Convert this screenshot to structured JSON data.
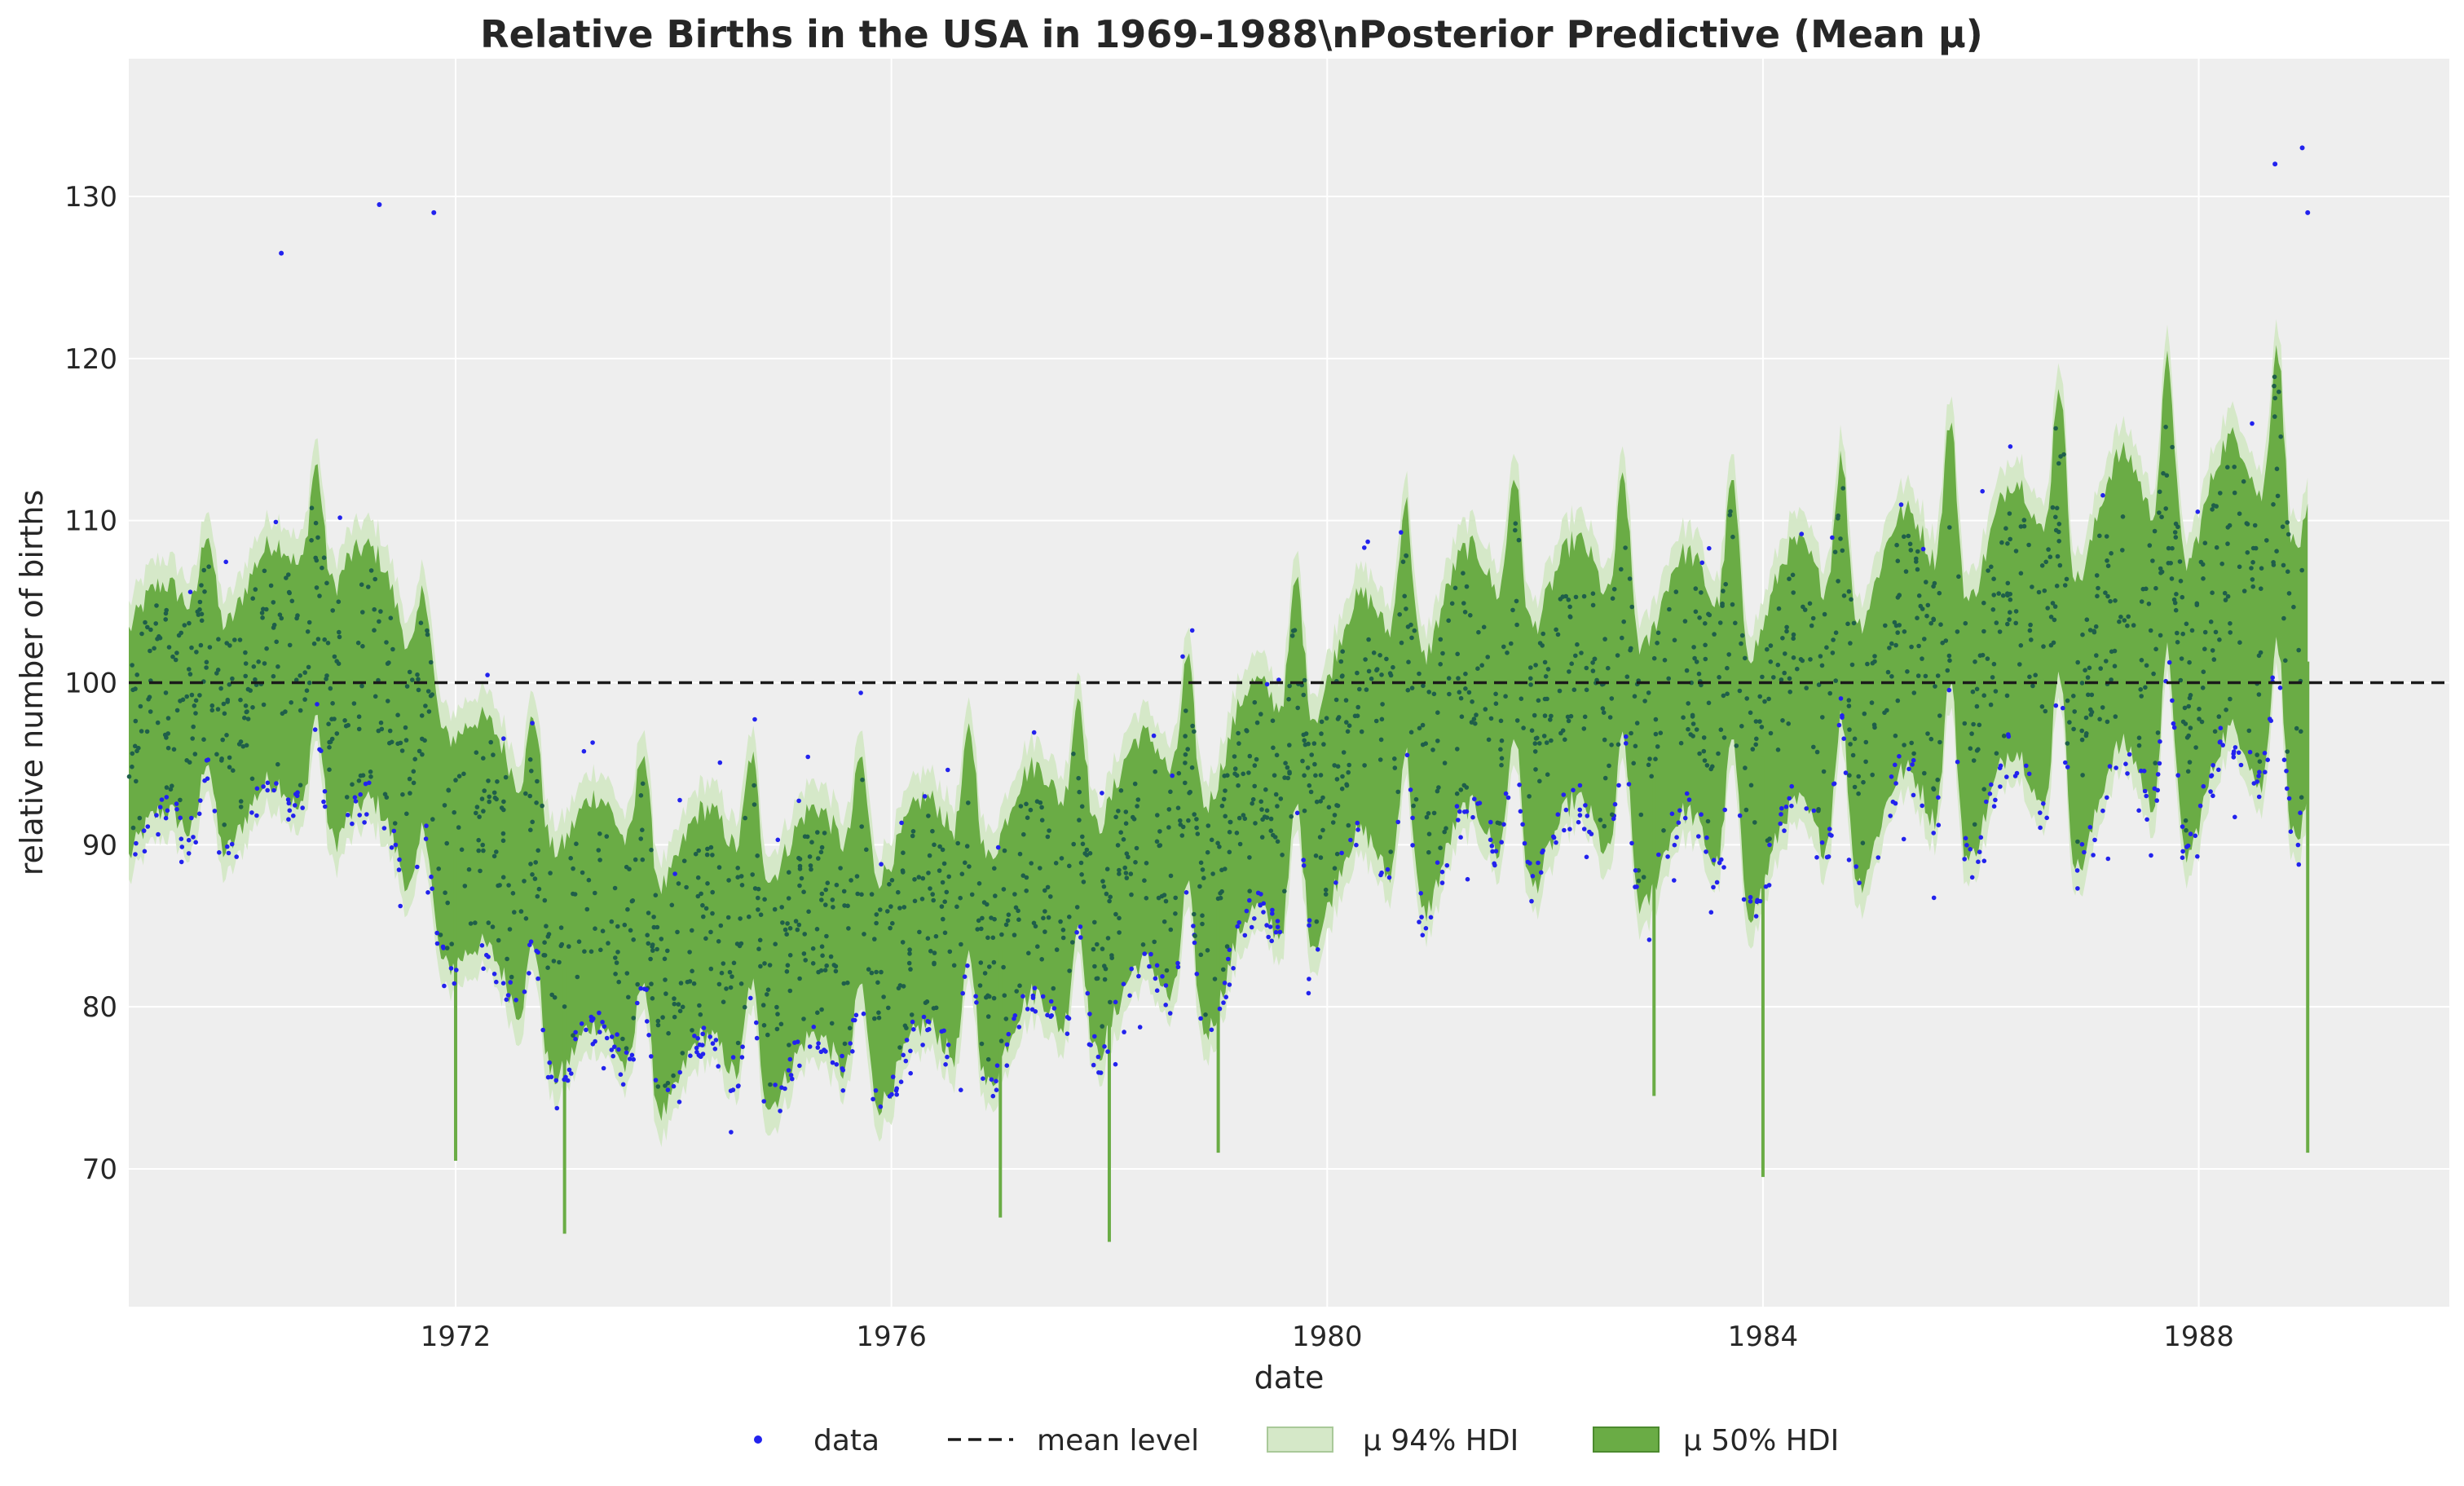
{
  "chart_data": {
    "type": "line",
    "title": "Relative Births in the USA in 1969-1988\\nPosterior Predictive (Mean μ)",
    "xlabel": "date",
    "ylabel": "relative number of births",
    "xlim": [
      1969.0,
      1990.3
    ],
    "ylim": [
      61.5,
      138.5
    ],
    "x_ticks": [
      1972,
      1976,
      1980,
      1984,
      1988
    ],
    "x_tick_labels": [
      "1972",
      "1976",
      "1980",
      "1984",
      "1988"
    ],
    "y_ticks": [
      70,
      80,
      90,
      100,
      110,
      120,
      130
    ],
    "y_tick_labels": [
      "70",
      "80",
      "90",
      "100",
      "110",
      "120",
      "130"
    ],
    "grid": true,
    "legend_position": "bottom-center",
    "reference_line": {
      "name": "mean level",
      "y": 100,
      "style": "dashed",
      "color": "#1a1a1a"
    },
    "series": [
      {
        "name": "data",
        "kind": "scatter",
        "color": "#2222ee"
      },
      {
        "name": "μ 94% HDI",
        "kind": "band",
        "color": "#d5e8c8"
      },
      {
        "name": "μ 50% HDI",
        "kind": "band",
        "color": "#6aac45"
      }
    ],
    "trend_x": [
      1969.0,
      1970.0,
      1971.0,
      1972.0,
      1973.0,
      1974.0,
      1975.0,
      1976.0,
      1977.0,
      1978.0,
      1979.0,
      1980.0,
      1981.0,
      1982.0,
      1983.0,
      1984.0,
      1985.0,
      1986.0,
      1987.0,
      1988.0,
      1989.0
    ],
    "trend_y": [
      99,
      101,
      104,
      93,
      87,
      86,
      86,
      86,
      88,
      90,
      92,
      98,
      101,
      102,
      101,
      101,
      103,
      105,
      106,
      107,
      108
    ],
    "seasonal_peak_fraction": 0.72,
    "seasonal_amplitude_y": [
      5,
      6,
      8,
      6,
      7,
      8,
      7,
      7,
      8,
      8,
      9,
      9,
      10,
      9,
      10,
      10,
      10,
      11,
      12,
      12,
      12
    ],
    "weekly_half_width_y": [
      7,
      7,
      8,
      7,
      7,
      7,
      7,
      7,
      7,
      7,
      7,
      7,
      8,
      8,
      8,
      8,
      8,
      8,
      9,
      9,
      9
    ],
    "notable_dips": [
      {
        "x": 1972.0,
        "y": 70.5
      },
      {
        "x": 1973.0,
        "y": 66
      },
      {
        "x": 1977.0,
        "y": 67
      },
      {
        "x": 1978.0,
        "y": 65.5
      },
      {
        "x": 1979.0,
        "y": 71
      },
      {
        "x": 1983.0,
        "y": 74.5
      },
      {
        "x": 1984.0,
        "y": 69.5
      },
      {
        "x": 1989.0,
        "y": 71
      }
    ],
    "notable_points": [
      {
        "x": 1970.4,
        "y": 126.5
      },
      {
        "x": 1971.3,
        "y": 129.5
      },
      {
        "x": 1971.8,
        "y": 129
      },
      {
        "x": 1988.7,
        "y": 132
      },
      {
        "x": 1988.95,
        "y": 133
      },
      {
        "x": 1989.0,
        "y": 129
      }
    ]
  }
}
